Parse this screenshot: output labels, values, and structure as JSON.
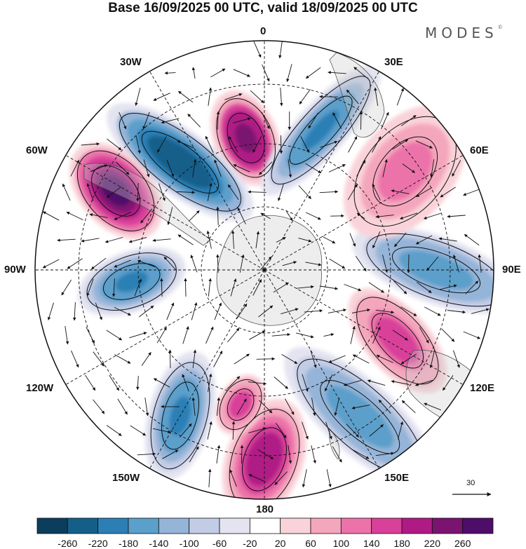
{
  "title": "Base 16/09/2025 00 UTC, valid 18/09/2025 00 UTC",
  "brand": "MODES",
  "brand_mark": "©",
  "longitude_labels": {
    "top": "0",
    "top_right": "30E",
    "right_upper": "60E",
    "right": "90E",
    "right_lower": "120E",
    "bottom_right": "150E",
    "bottom": "180",
    "bottom_left": "150W",
    "left_lower": "120W",
    "left": "90W",
    "left_upper": "60W",
    "top_left": "30W"
  },
  "reference_vector": {
    "value": "30"
  },
  "colorbar": {
    "labels": [
      "-260",
      "-220",
      "-180",
      "-140",
      "-100",
      "-60",
      "-20",
      "20",
      "60",
      "100",
      "140",
      "180",
      "220",
      "260"
    ],
    "colors": [
      "#0b3d5c",
      "#145f8a",
      "#2b7fb5",
      "#5b9fcb",
      "#94b4d8",
      "#c2cce5",
      "#e4e4f1",
      "#ffffff",
      "#f9d3d9",
      "#f4a6bd",
      "#ec73a9",
      "#d8409a",
      "#b01a85",
      "#7a1470",
      "#4f0d6a"
    ]
  },
  "chart_data": {
    "type": "heatmap",
    "title": "Base 16/09/2025 00 UTC, valid 18/09/2025 00 UTC",
    "projection": "south polar stereographic",
    "field": "geopotential height anomaly (shaded) with wind vectors",
    "levels": [
      -260,
      -220,
      -180,
      -140,
      -100,
      -60,
      -20,
      20,
      60,
      100,
      140,
      180,
      220,
      260
    ],
    "reference_vector": 30,
    "anomaly_centres": [
      {
        "lon": -8,
        "sign": "positive",
        "peak": 240
      },
      {
        "lon": 22,
        "sign": "negative",
        "peak": -200
      },
      {
        "lon": -38,
        "sign": "negative",
        "peak": -260
      },
      {
        "lon": -62,
        "sign": "positive",
        "peak": 270
      },
      {
        "lon": -95,
        "sign": "negative",
        "peak": -200
      },
      {
        "lon": 90,
        "sign": "negative",
        "peak": -180
      },
      {
        "lon": 55,
        "sign": "positive",
        "peak": 120
      },
      {
        "lon": 118,
        "sign": "positive",
        "peak": 160
      },
      {
        "lon": 147,
        "sign": "negative",
        "peak": -180
      },
      {
        "lon": 180,
        "sign": "positive",
        "peak": 200
      },
      {
        "lon": -150,
        "sign": "negative",
        "peak": -200
      },
      {
        "lon": -170,
        "sign": "positive",
        "peak": 160
      }
    ]
  }
}
